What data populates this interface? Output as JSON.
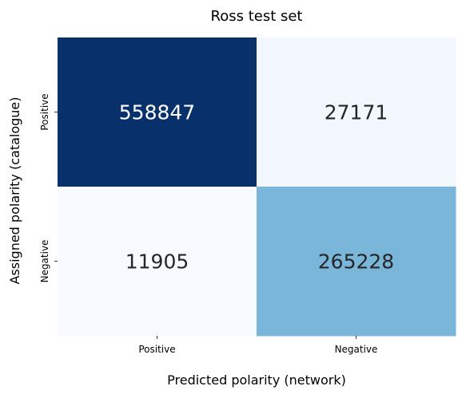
{
  "chart_data": {
    "type": "heatmap",
    "title": "Ross test set",
    "xlabel": "Predicted polarity (network)",
    "ylabel": "Assigned polarity (catalogue)",
    "x_categories": [
      "Positive",
      "Negative"
    ],
    "y_categories": [
      "Positive",
      "Negative"
    ],
    "values": [
      [
        558847,
        27171
      ],
      [
        11905,
        265228
      ]
    ],
    "colormap": "Blues",
    "annotate_cells": true,
    "colorbar": false
  },
  "colors": {
    "dark_text": "#262626",
    "light_text": "#ffffff",
    "axis": "#000000"
  }
}
